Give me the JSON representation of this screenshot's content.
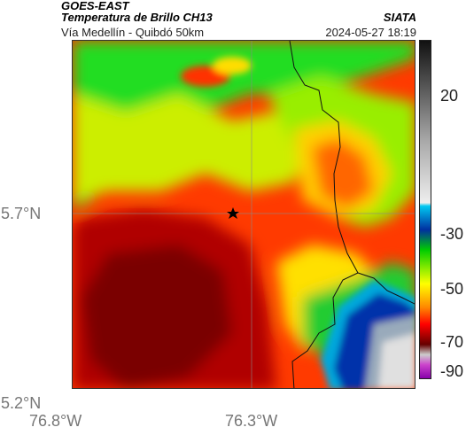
{
  "header": {
    "satellite": "GOES-EAST",
    "product": "Temperatura de Brillo CH13",
    "region": "Vía Medellín - Quibdó 50km",
    "org": "SIATA",
    "datetime": "2024-05-27 18:19"
  },
  "map": {
    "lat_ticks": [
      "5.7°N",
      "5.2°N"
    ],
    "lon_ticks": [
      "76.8°W",
      "76.3°W"
    ],
    "marker_icon": "star-icon"
  },
  "colorbar": {
    "labels": [
      "20",
      "-30",
      "-50",
      "-70",
      "-90"
    ]
  },
  "colors": {
    "very_cold": "#cc33cc",
    "cold": "#0033aa",
    "cool": "#00b4dc",
    "mid": "#00cc00",
    "warmish": "#f0f000",
    "warm": "#ff2a00",
    "hot": "#7a0000"
  }
}
